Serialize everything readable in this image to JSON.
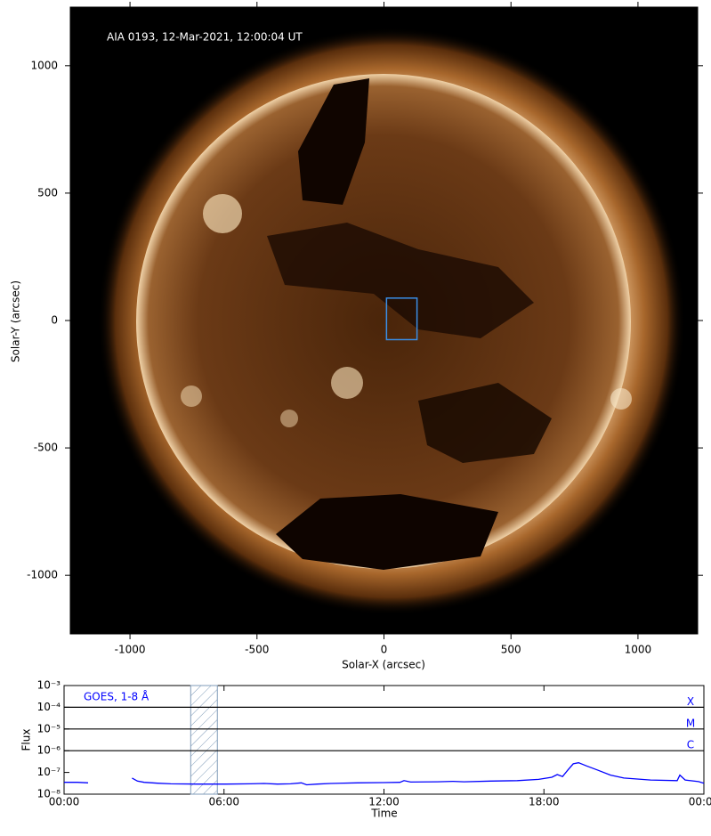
{
  "chart_data": [
    {
      "type": "image",
      "title": "AIA 0193, 12-Mar-2021, 12:00:04 UT",
      "x_label": "Solar-X (arcsec)",
      "y_label": "Solar-Y (arcsec)",
      "xlim": [
        -1235,
        1235
      ],
      "ylim": [
        -1230,
        1230
      ],
      "xticks": [
        -1000,
        -500,
        0,
        500,
        1000
      ],
      "yticks": [
        -1000,
        -500,
        0,
        500,
        1000
      ],
      "box": {
        "x": [
          10,
          130
        ],
        "y": [
          -75,
          88
        ],
        "color": "#3a8ee6"
      }
    },
    {
      "type": "line",
      "x_label": "Time",
      "y_label": "Flux",
      "log_y": true,
      "xlim": [
        0,
        24
      ],
      "ylim": [
        1e-08,
        0.001
      ],
      "xticks": [
        {
          "value": 0,
          "label": "00:00"
        },
        {
          "value": 6,
          "label": "06:00"
        },
        {
          "value": 12,
          "label": "12:00"
        },
        {
          "value": 18,
          "label": "18:00"
        },
        {
          "value": 24,
          "label": "00:00"
        }
      ],
      "yticks": [
        {
          "value": 1e-08,
          "label": "10⁻⁸"
        },
        {
          "value": 1e-07,
          "label": "10⁻⁷"
        },
        {
          "value": 1e-06,
          "label": "10⁻⁶"
        },
        {
          "value": 1e-05,
          "label": "10⁻⁵"
        },
        {
          "value": 0.0001,
          "label": "10⁻⁴"
        },
        {
          "value": 0.001,
          "label": "10⁻³"
        }
      ],
      "levels": [
        {
          "label": "X",
          "value": 0.0001
        },
        {
          "label": "M",
          "value": 1e-05
        },
        {
          "label": "C",
          "value": 1e-06
        }
      ],
      "shaded": [
        4.75,
        5.75
      ],
      "x": [
        0,
        0.5,
        0.9,
        1.5,
        2.55,
        2.75,
        3,
        3.5,
        4,
        5,
        6,
        7,
        7.5,
        8,
        8.5,
        8.9,
        9.1,
        9.5,
        10,
        11,
        12,
        12.6,
        12.75,
        13,
        14,
        14.6,
        15,
        16,
        17,
        17.8,
        18.3,
        18.5,
        18.7,
        18.9,
        19.1,
        19.3,
        19.6,
        20,
        20.5,
        21,
        22,
        23,
        23.1,
        23.3,
        23.8,
        24
      ],
      "series": [
        {
          "name": "GOES, 1-8 Å",
          "color": "#0000ff",
          "values": [
            3.5e-08,
            3.5e-08,
            3.3e-08,
            null,
            5.5e-08,
            4e-08,
            3.5e-08,
            3.2e-08,
            3e-08,
            2.9e-08,
            2.9e-08,
            3e-08,
            3.1e-08,
            2.9e-08,
            3e-08,
            3.3e-08,
            2.7e-08,
            2.9e-08,
            3.1e-08,
            3.3e-08,
            3.4e-08,
            3.5e-08,
            4.2e-08,
            3.6e-08,
            3.7e-08,
            3.9e-08,
            3.7e-08,
            4e-08,
            4.2e-08,
            4.8e-08,
            6e-08,
            8e-08,
            6.5e-08,
            1.3e-07,
            2.5e-07,
            2.8e-07,
            2e-07,
            1.3e-07,
            7.5e-08,
            5.5e-08,
            4.5e-08,
            4.2e-08,
            7.5e-08,
            4.5e-08,
            3.8e-08,
            3.2e-08
          ]
        }
      ]
    }
  ]
}
